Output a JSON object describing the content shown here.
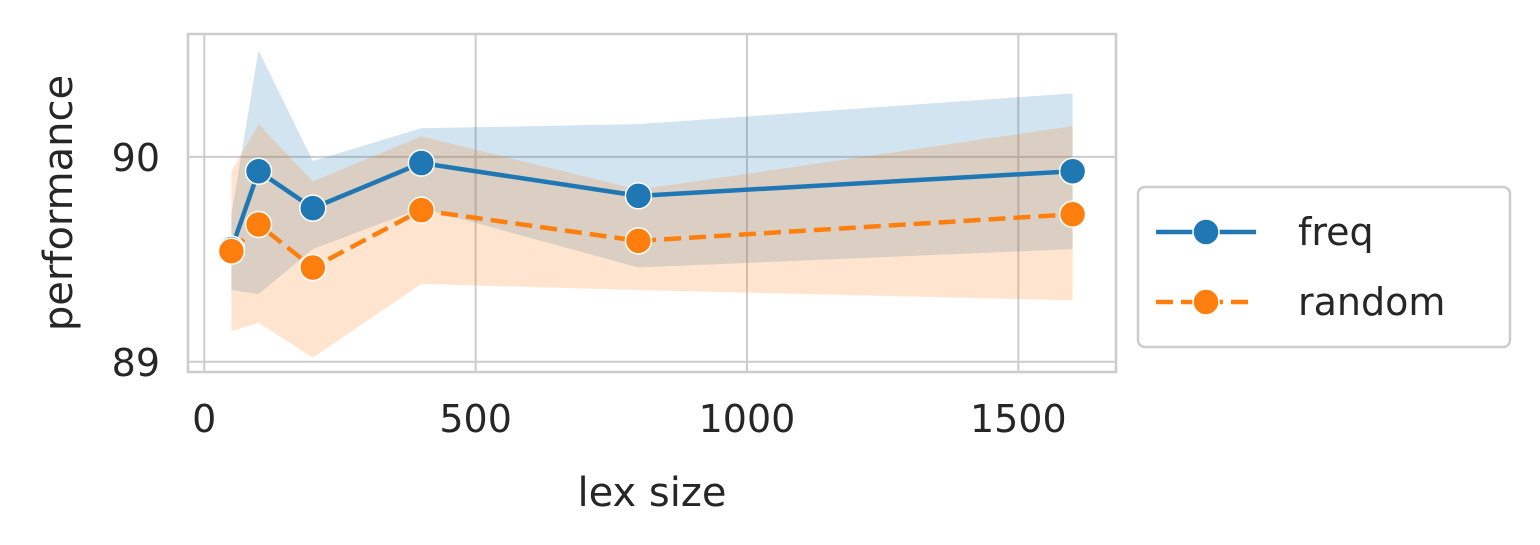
{
  "chart_data": {
    "type": "line",
    "title": "",
    "xlabel": "lex size",
    "ylabel": "performance",
    "xlim": [
      -30,
      1680
    ],
    "ylim": [
      88.95,
      90.6
    ],
    "xticks": [
      0,
      500,
      1000,
      1500
    ],
    "yticks": [
      89,
      90
    ],
    "grid": true,
    "legend_position": "right",
    "series": [
      {
        "name": "freq",
        "color": "#1f77b4",
        "line_style": "solid",
        "x": [
          50,
          100,
          200,
          400,
          800,
          1600
        ],
        "y": [
          89.55,
          89.93,
          89.75,
          89.97,
          89.81,
          89.93
        ],
        "ci_low": [
          89.35,
          89.33,
          89.55,
          89.75,
          89.46,
          89.55
        ],
        "ci_high": [
          89.72,
          90.52,
          89.98,
          90.14,
          90.16,
          90.31
        ]
      },
      {
        "name": "random",
        "color": "#ff7f0e",
        "line_style": "dashed",
        "x": [
          50,
          100,
          200,
          400,
          800,
          1600
        ],
        "y": [
          89.54,
          89.67,
          89.46,
          89.74,
          89.59,
          89.72
        ],
        "ci_low": [
          89.15,
          89.19,
          89.02,
          89.38,
          89.35,
          89.3
        ],
        "ci_high": [
          89.93,
          90.16,
          89.88,
          90.1,
          89.84,
          90.15
        ]
      }
    ]
  }
}
